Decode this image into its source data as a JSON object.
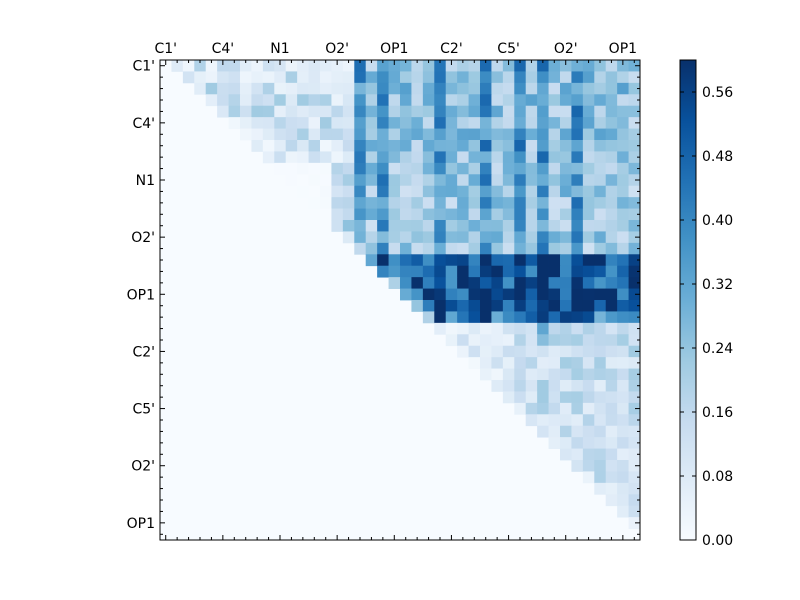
{
  "chart_data": {
    "type": "heatmap",
    "title": "",
    "xlabel": "",
    "ylabel": "",
    "grid_size": 42,
    "tick_step": 5,
    "x_tick_labels": [
      "C1'",
      "C4'",
      "N1",
      "O2'",
      "OP1",
      "C2'",
      "C5'",
      "O2'",
      "OP1"
    ],
    "y_tick_labels": [
      "C1'",
      "C4'",
      "N1",
      "O2'",
      "OP1",
      "C2'",
      "C5'",
      "O2'",
      "OP1"
    ],
    "colormap": "Blues",
    "color_low": "#f7fbff",
    "color_high": "#08306b",
    "vmin": 0.0,
    "vmax": 0.6,
    "colorbar_ticks": [
      0.0,
      0.08,
      0.16,
      0.24,
      0.32,
      0.4,
      0.48,
      0.56
    ],
    "colorbar_labels": [
      "0.00",
      "0.08",
      "0.16",
      "0.24",
      "0.32",
      "0.40",
      "0.48",
      "0.56"
    ],
    "lower_triangle_value": 0.0,
    "matrix_note_values": "upper-triangular interaction strengths, diagonal and lower triangle are ~0"
  }
}
